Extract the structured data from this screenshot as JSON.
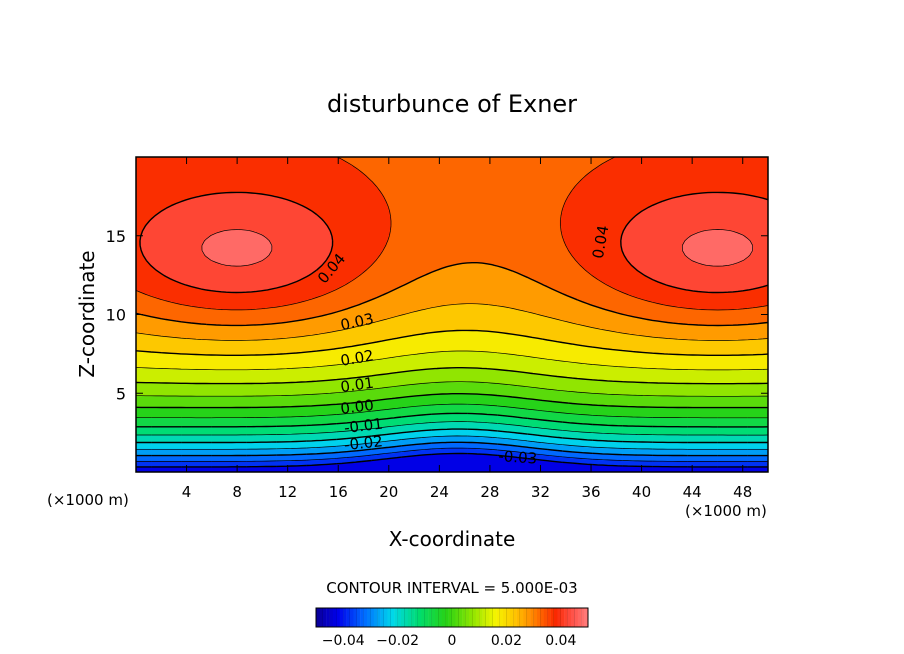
{
  "chart_data": {
    "type": "heatmap",
    "title": "disturbunce of Exner",
    "xlabel": "X-coordinate",
    "ylabel": "Z-coordinate",
    "x_unit_left": "(×1000 m)",
    "x_unit_right": "(×1000 m)",
    "xlim": [
      0,
      50
    ],
    "ylim": [
      0,
      20
    ],
    "x_ticks": [
      4,
      8,
      12,
      16,
      20,
      24,
      28,
      32,
      36,
      40,
      44,
      48
    ],
    "y_ticks": [
      5,
      10,
      15
    ],
    "contour_interval_text": "CONTOUR INTERVAL = 5.000E-03",
    "contour_interval": 0.005,
    "color_range": [
      -0.05,
      0.05
    ],
    "colorbar_ticks": [
      {
        "value": -0.04,
        "label": "−0.04"
      },
      {
        "value": -0.02,
        "label": "−0.02"
      },
      {
        "value": 0,
        "label": "0"
      },
      {
        "value": 0.02,
        "label": "0.02"
      },
      {
        "value": 0.04,
        "label": "0.04"
      }
    ],
    "contour_labels": [
      {
        "text": "0.04",
        "x": 15.5,
        "z": 12.9,
        "angle": -50
      },
      {
        "text": "0.04",
        "x": 36.8,
        "z": 14.6,
        "angle": -80
      },
      {
        "text": "0.03",
        "x": 17.5,
        "z": 9.5,
        "angle": -12
      },
      {
        "text": "0.02",
        "x": 17.5,
        "z": 7.2,
        "angle": -10
      },
      {
        "text": "0.01",
        "x": 17.5,
        "z": 5.5,
        "angle": -8
      },
      {
        "text": "0.00",
        "x": 17.5,
        "z": 4.1,
        "angle": -7
      },
      {
        "text": "-0.01",
        "x": 18.0,
        "z": 2.9,
        "angle": -7
      },
      {
        "text": "-0.02",
        "x": 18.0,
        "z": 1.8,
        "angle": -6
      },
      {
        "text": "-0.03",
        "x": 30.2,
        "z": 0.9,
        "angle": 4
      }
    ],
    "field_description_values": {
      "max": 0.049,
      "min": -0.045,
      "high_centers": [
        [
          8,
          13.5
        ],
        [
          46,
          13.5
        ]
      ],
      "low_center": [
        26,
        0
      ]
    }
  }
}
